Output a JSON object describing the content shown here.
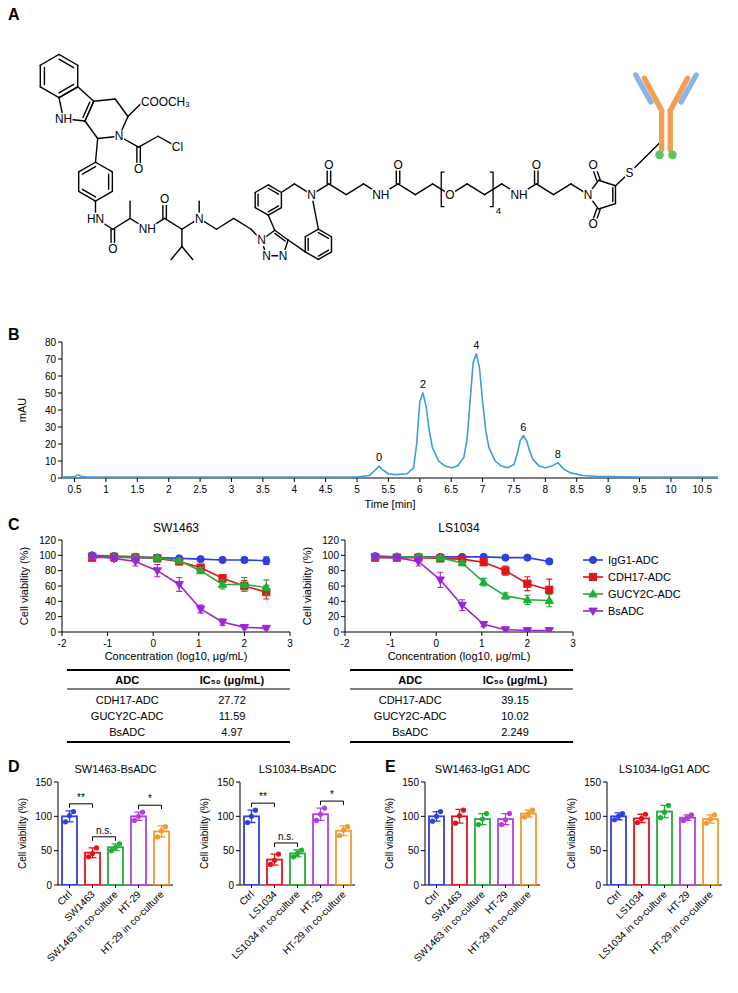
{
  "panel_labels": [
    "A",
    "B",
    "C",
    "D",
    "E"
  ],
  "structure": {
    "labels": [
      "NH",
      "COOCH₃",
      "N",
      "O",
      "Cl",
      "HN",
      "O",
      "NH",
      "O",
      "N",
      "N",
      "N",
      "N",
      "N",
      "O",
      "NH",
      "O",
      "O",
      "4",
      "NH",
      "O",
      "N",
      "O",
      "O",
      "S"
    ]
  },
  "chart_data": [
    {
      "type": "line",
      "xlabel": "Time [min]",
      "ylabel": "mAU",
      "color": "#3d9be0",
      "x": [
        0.3,
        0.5,
        0.55,
        0.6,
        0.7,
        1,
        2,
        3,
        4,
        5,
        5.2,
        5.3,
        5.35,
        5.4,
        5.5,
        5.6,
        5.8,
        5.9,
        5.95,
        6.0,
        6.05,
        6.1,
        6.15,
        6.2,
        6.3,
        6.4,
        6.5,
        6.6,
        6.7,
        6.75,
        6.8,
        6.85,
        6.9,
        6.95,
        7.0,
        7.05,
        7.1,
        7.2,
        7.3,
        7.4,
        7.5,
        7.55,
        7.6,
        7.65,
        7.7,
        7.75,
        7.8,
        7.9,
        8.0,
        8.1,
        8.15,
        8.2,
        8.25,
        8.3,
        8.4,
        8.6,
        8.8,
        9,
        9.5,
        10,
        10.5,
        10.75
      ],
      "values": [
        0.5,
        0.8,
        2,
        1,
        0.5,
        0.5,
        0.5,
        0.5,
        0.5,
        0.6,
        1.5,
        5,
        7,
        5,
        2.5,
        2,
        2.5,
        6,
        20,
        45,
        50,
        42,
        28,
        18,
        10,
        7,
        6,
        7,
        12,
        22,
        45,
        68,
        73,
        65,
        45,
        28,
        18,
        10,
        7,
        6,
        8,
        14,
        22,
        25,
        22,
        16,
        11,
        7,
        6,
        7,
        8,
        9,
        7,
        5,
        3,
        1.5,
        1,
        0.8,
        0.6,
        0.5,
        0.5,
        0.5
      ],
      "xlim": [
        0.3,
        10.75
      ],
      "xticks": [
        0.5,
        1,
        1.5,
        2,
        2.5,
        3,
        3.5,
        4,
        4.5,
        5,
        5.5,
        6,
        6.5,
        7,
        7.5,
        8,
        8.5,
        9,
        9.5,
        10,
        10.5
      ],
      "ylim": [
        0,
        80
      ],
      "yticks": [
        0,
        10,
        20,
        30,
        40,
        50,
        60,
        70,
        80
      ],
      "annotations": [
        {
          "text": "0",
          "x": 5.35,
          "y": 7
        },
        {
          "text": "2",
          "x": 6.05,
          "y": 50
        },
        {
          "text": "4",
          "x": 6.9,
          "y": 73
        },
        {
          "text": "6",
          "x": 7.65,
          "y": 25
        },
        {
          "text": "8",
          "x": 8.2,
          "y": 9
        }
      ]
    },
    {
      "type": "line",
      "title": "SW1463",
      "xlabel": "Concentration (log10, μg/mL)",
      "ylabel": "Cell viability (%)",
      "x": [
        -1.34,
        -0.86,
        -0.39,
        0.09,
        0.57,
        1.04,
        1.52,
        2,
        2.48
      ],
      "xlim": [
        -2,
        3
      ],
      "xticks": [
        -2,
        -1,
        0,
        1,
        2,
        3
      ],
      "ylim": [
        0,
        120
      ],
      "yticks": [
        0,
        20,
        40,
        60,
        80,
        100,
        120
      ],
      "series": [
        {
          "color": "#2f3fe0",
          "marker": "circle",
          "values": [
            100,
            99,
            98,
            97,
            96,
            95,
            94,
            94,
            93
          ],
          "errors": [
            3,
            2,
            2,
            2,
            2,
            2,
            2,
            3,
            5
          ]
        },
        {
          "color": "#e3141b",
          "marker": "square",
          "values": [
            97,
            98,
            97,
            96,
            92,
            84,
            70,
            60,
            52
          ],
          "errors": [
            3,
            2,
            2,
            2,
            3,
            4,
            5,
            7,
            9
          ]
        },
        {
          "color": "#1fae3a",
          "marker": "triangle-up",
          "values": [
            99,
            98,
            97,
            97,
            93,
            80,
            62,
            62,
            58
          ],
          "errors": [
            2,
            2,
            2,
            2,
            3,
            4,
            6,
            9,
            10
          ]
        },
        {
          "color": "#9b26d9",
          "marker": "triangle-down",
          "values": [
            99,
            96,
            92,
            80,
            62,
            30,
            13,
            6,
            5
          ],
          "errors": [
            3,
            4,
            6,
            8,
            9,
            5,
            4,
            2,
            2
          ]
        }
      ]
    },
    {
      "type": "line",
      "title": "LS1034",
      "xlabel": "Concentration (log10, μg/mL)",
      "ylabel": "Cell viability (%)",
      "legend": "right",
      "x": [
        -1.34,
        -0.86,
        -0.39,
        0.09,
        0.57,
        1.04,
        1.52,
        2,
        2.48
      ],
      "xlim": [
        -2,
        3
      ],
      "xticks": [
        -2,
        -1,
        0,
        1,
        2,
        3
      ],
      "ylim": [
        0,
        120
      ],
      "yticks": [
        0,
        20,
        40,
        60,
        80,
        100,
        120
      ],
      "series": [
        {
          "name": "IgG1-ADC",
          "color": "#2f3fe0",
          "marker": "circle",
          "values": [
            99,
            98,
            98,
            98,
            98,
            98,
            97,
            97,
            92
          ],
          "errors": [
            3,
            2,
            2,
            2,
            2,
            2,
            2,
            2,
            3
          ]
        },
        {
          "name": "CDH17-ADC",
          "color": "#e3141b",
          "marker": "square",
          "values": [
            97,
            97,
            97,
            96,
            95,
            91,
            80,
            63,
            55
          ],
          "errors": [
            2,
            2,
            2,
            2,
            3,
            4,
            6,
            9,
            14
          ]
        },
        {
          "name": "GUCY2C-ADC",
          "color": "#1fae3a",
          "marker": "triangle-up",
          "values": [
            98,
            98,
            98,
            97,
            90,
            65,
            47,
            42,
            41
          ],
          "errors": [
            2,
            2,
            3,
            2,
            3,
            5,
            4,
            6,
            8
          ]
        },
        {
          "name": "BsADC",
          "color": "#9b26d9",
          "marker": "triangle-down",
          "values": [
            98,
            97,
            92,
            68,
            35,
            10,
            3,
            2,
            2
          ],
          "errors": [
            3,
            3,
            6,
            10,
            7,
            3,
            2,
            1,
            1
          ]
        }
      ]
    },
    {
      "type": "bar",
      "title": "SW1463-BsADC",
      "ylabel": "Cell viability (%)",
      "categories": [
        "Ctrl",
        "SW1463",
        "SW1463 in co-culture",
        "HT-29",
        "HT-29 in co-culture"
      ],
      "values": [
        100,
        47,
        55,
        100,
        78
      ],
      "errors": [
        8,
        7,
        5,
        6,
        8
      ],
      "points": [
        [
          92,
          101,
          107
        ],
        [
          41,
          46,
          54
        ],
        [
          50,
          55,
          60
        ],
        [
          94,
          100,
          106
        ],
        [
          70,
          79,
          85
        ]
      ],
      "colors": [
        "#2f3fe0",
        "#e3141b",
        "#1fae3a",
        "#b23fe0",
        "#f29a2e"
      ],
      "ylim": [
        0,
        150
      ],
      "yticks": [
        0,
        50,
        100,
        150
      ],
      "annotations": [
        {
          "from": 0,
          "to": 1,
          "text": "**"
        },
        {
          "from": 1,
          "to": 2,
          "text": "n.s."
        },
        {
          "from": 3,
          "to": 4,
          "text": "*"
        }
      ]
    },
    {
      "type": "bar",
      "title": "LS1034-BsADC",
      "ylabel": "Cell viability (%)",
      "categories": [
        "Ctrl",
        "LS1034",
        "LS1034 in co-culture",
        "HT-29",
        "HT-29 in co-culture"
      ],
      "values": [
        100,
        37,
        46,
        103,
        79
      ],
      "errors": [
        9,
        8,
        5,
        9,
        7
      ],
      "points": [
        [
          91,
          100,
          109
        ],
        [
          30,
          36,
          45
        ],
        [
          41,
          46,
          51
        ],
        [
          94,
          103,
          112
        ],
        [
          72,
          80,
          85
        ]
      ],
      "colors": [
        "#2f3fe0",
        "#e3141b",
        "#1fae3a",
        "#b23fe0",
        "#f29a2e"
      ],
      "ylim": [
        0,
        150
      ],
      "yticks": [
        0,
        50,
        100,
        150
      ],
      "annotations": [
        {
          "from": 0,
          "to": 1,
          "text": "**"
        },
        {
          "from": 1,
          "to": 2,
          "text": "n.s."
        },
        {
          "from": 3,
          "to": 4,
          "text": "*"
        }
      ]
    },
    {
      "type": "bar",
      "title": "SW1463-IgG1 ADC",
      "ylabel": "Cell viability (%)",
      "categories": [
        "Ctrl",
        "SW1463",
        "SW1463 in co-culture",
        "HT-29",
        "HT-29 in co-culture"
      ],
      "values": [
        100,
        100,
        96,
        96,
        104
      ],
      "errors": [
        7,
        10,
        8,
        8,
        5
      ],
      "points": [
        [
          93,
          100,
          107
        ],
        [
          90,
          101,
          109
        ],
        [
          88,
          96,
          104
        ],
        [
          88,
          95,
          104
        ],
        [
          99,
          104,
          109
        ]
      ],
      "colors": [
        "#2f3fe0",
        "#e3141b",
        "#1fae3a",
        "#b23fe0",
        "#f29a2e"
      ],
      "ylim": [
        0,
        150
      ],
      "yticks": [
        0,
        50,
        100,
        150
      ]
    },
    {
      "type": "bar",
      "title": "LS1034-IgG1 ADC",
      "ylabel": "Cell viability (%)",
      "categories": [
        "Ctrl",
        "LS1034",
        "LS1034 in co-culture",
        "HT-29",
        "HT-29 in co-culture"
      ],
      "values": [
        100,
        97,
        107,
        98,
        96
      ],
      "errors": [
        5,
        6,
        9,
        4,
        6
      ],
      "points": [
        [
          95,
          100,
          104
        ],
        [
          91,
          97,
          103
        ],
        [
          98,
          106,
          116
        ],
        [
          94,
          98,
          102
        ],
        [
          90,
          96,
          102
        ]
      ],
      "colors": [
        "#2f3fe0",
        "#e3141b",
        "#1fae3a",
        "#b23fe0",
        "#f29a2e"
      ],
      "ylim": [
        0,
        150
      ],
      "yticks": [
        0,
        50,
        100,
        150
      ]
    }
  ],
  "tables": [
    {
      "header": [
        "ADC",
        "IC₅₀ (μg/mL)"
      ],
      "rows": [
        [
          "CDH17-ADC",
          27.72
        ],
        [
          "GUCY2C-ADC",
          11.59
        ],
        [
          "BsADC",
          4.97
        ]
      ]
    },
    {
      "header": [
        "ADC",
        "IC₅₀ (μg/mL)"
      ],
      "rows": [
        [
          "CDH17-ADC",
          39.15
        ],
        [
          "GUCY2C-ADC",
          10.02
        ],
        [
          "BsADC",
          2.249
        ]
      ]
    }
  ]
}
